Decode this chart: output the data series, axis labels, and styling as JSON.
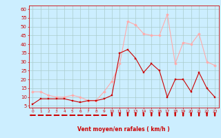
{
  "hours": [
    0,
    1,
    2,
    3,
    4,
    5,
    6,
    7,
    8,
    9,
    10,
    11,
    12,
    13,
    14,
    15,
    16,
    17,
    18,
    19,
    20,
    21,
    22,
    23
  ],
  "wind_avg": [
    6,
    9,
    9,
    9,
    9,
    8,
    7,
    8,
    8,
    9,
    11,
    35,
    37,
    32,
    24,
    29,
    25,
    10,
    20,
    20,
    13,
    24,
    15,
    10
  ],
  "wind_gust": [
    13,
    13,
    11,
    10,
    10,
    11,
    10,
    8,
    8,
    13,
    19,
    29,
    53,
    51,
    46,
    45,
    45,
    57,
    29,
    41,
    40,
    46,
    30,
    28
  ],
  "avg_color": "#cc0000",
  "gust_color": "#ffaaaa",
  "bg_color": "#cceeff",
  "grid_color": "#aacccc",
  "xlabel": "Vent moyen/en rafales ( km/h )",
  "xlabel_color": "#cc0000",
  "yticks": [
    5,
    10,
    15,
    20,
    25,
    30,
    35,
    40,
    45,
    50,
    55,
    60
  ],
  "ylim": [
    4,
    62
  ],
  "xlim": [
    -0.5,
    23.5
  ],
  "arrow_hours_left": [
    0,
    1,
    2,
    3,
    4,
    5,
    6,
    7,
    8,
    9
  ],
  "arrow_hours_up": [
    10,
    11,
    12,
    13,
    14,
    15,
    16,
    17,
    18,
    19,
    20,
    21,
    22,
    23
  ]
}
